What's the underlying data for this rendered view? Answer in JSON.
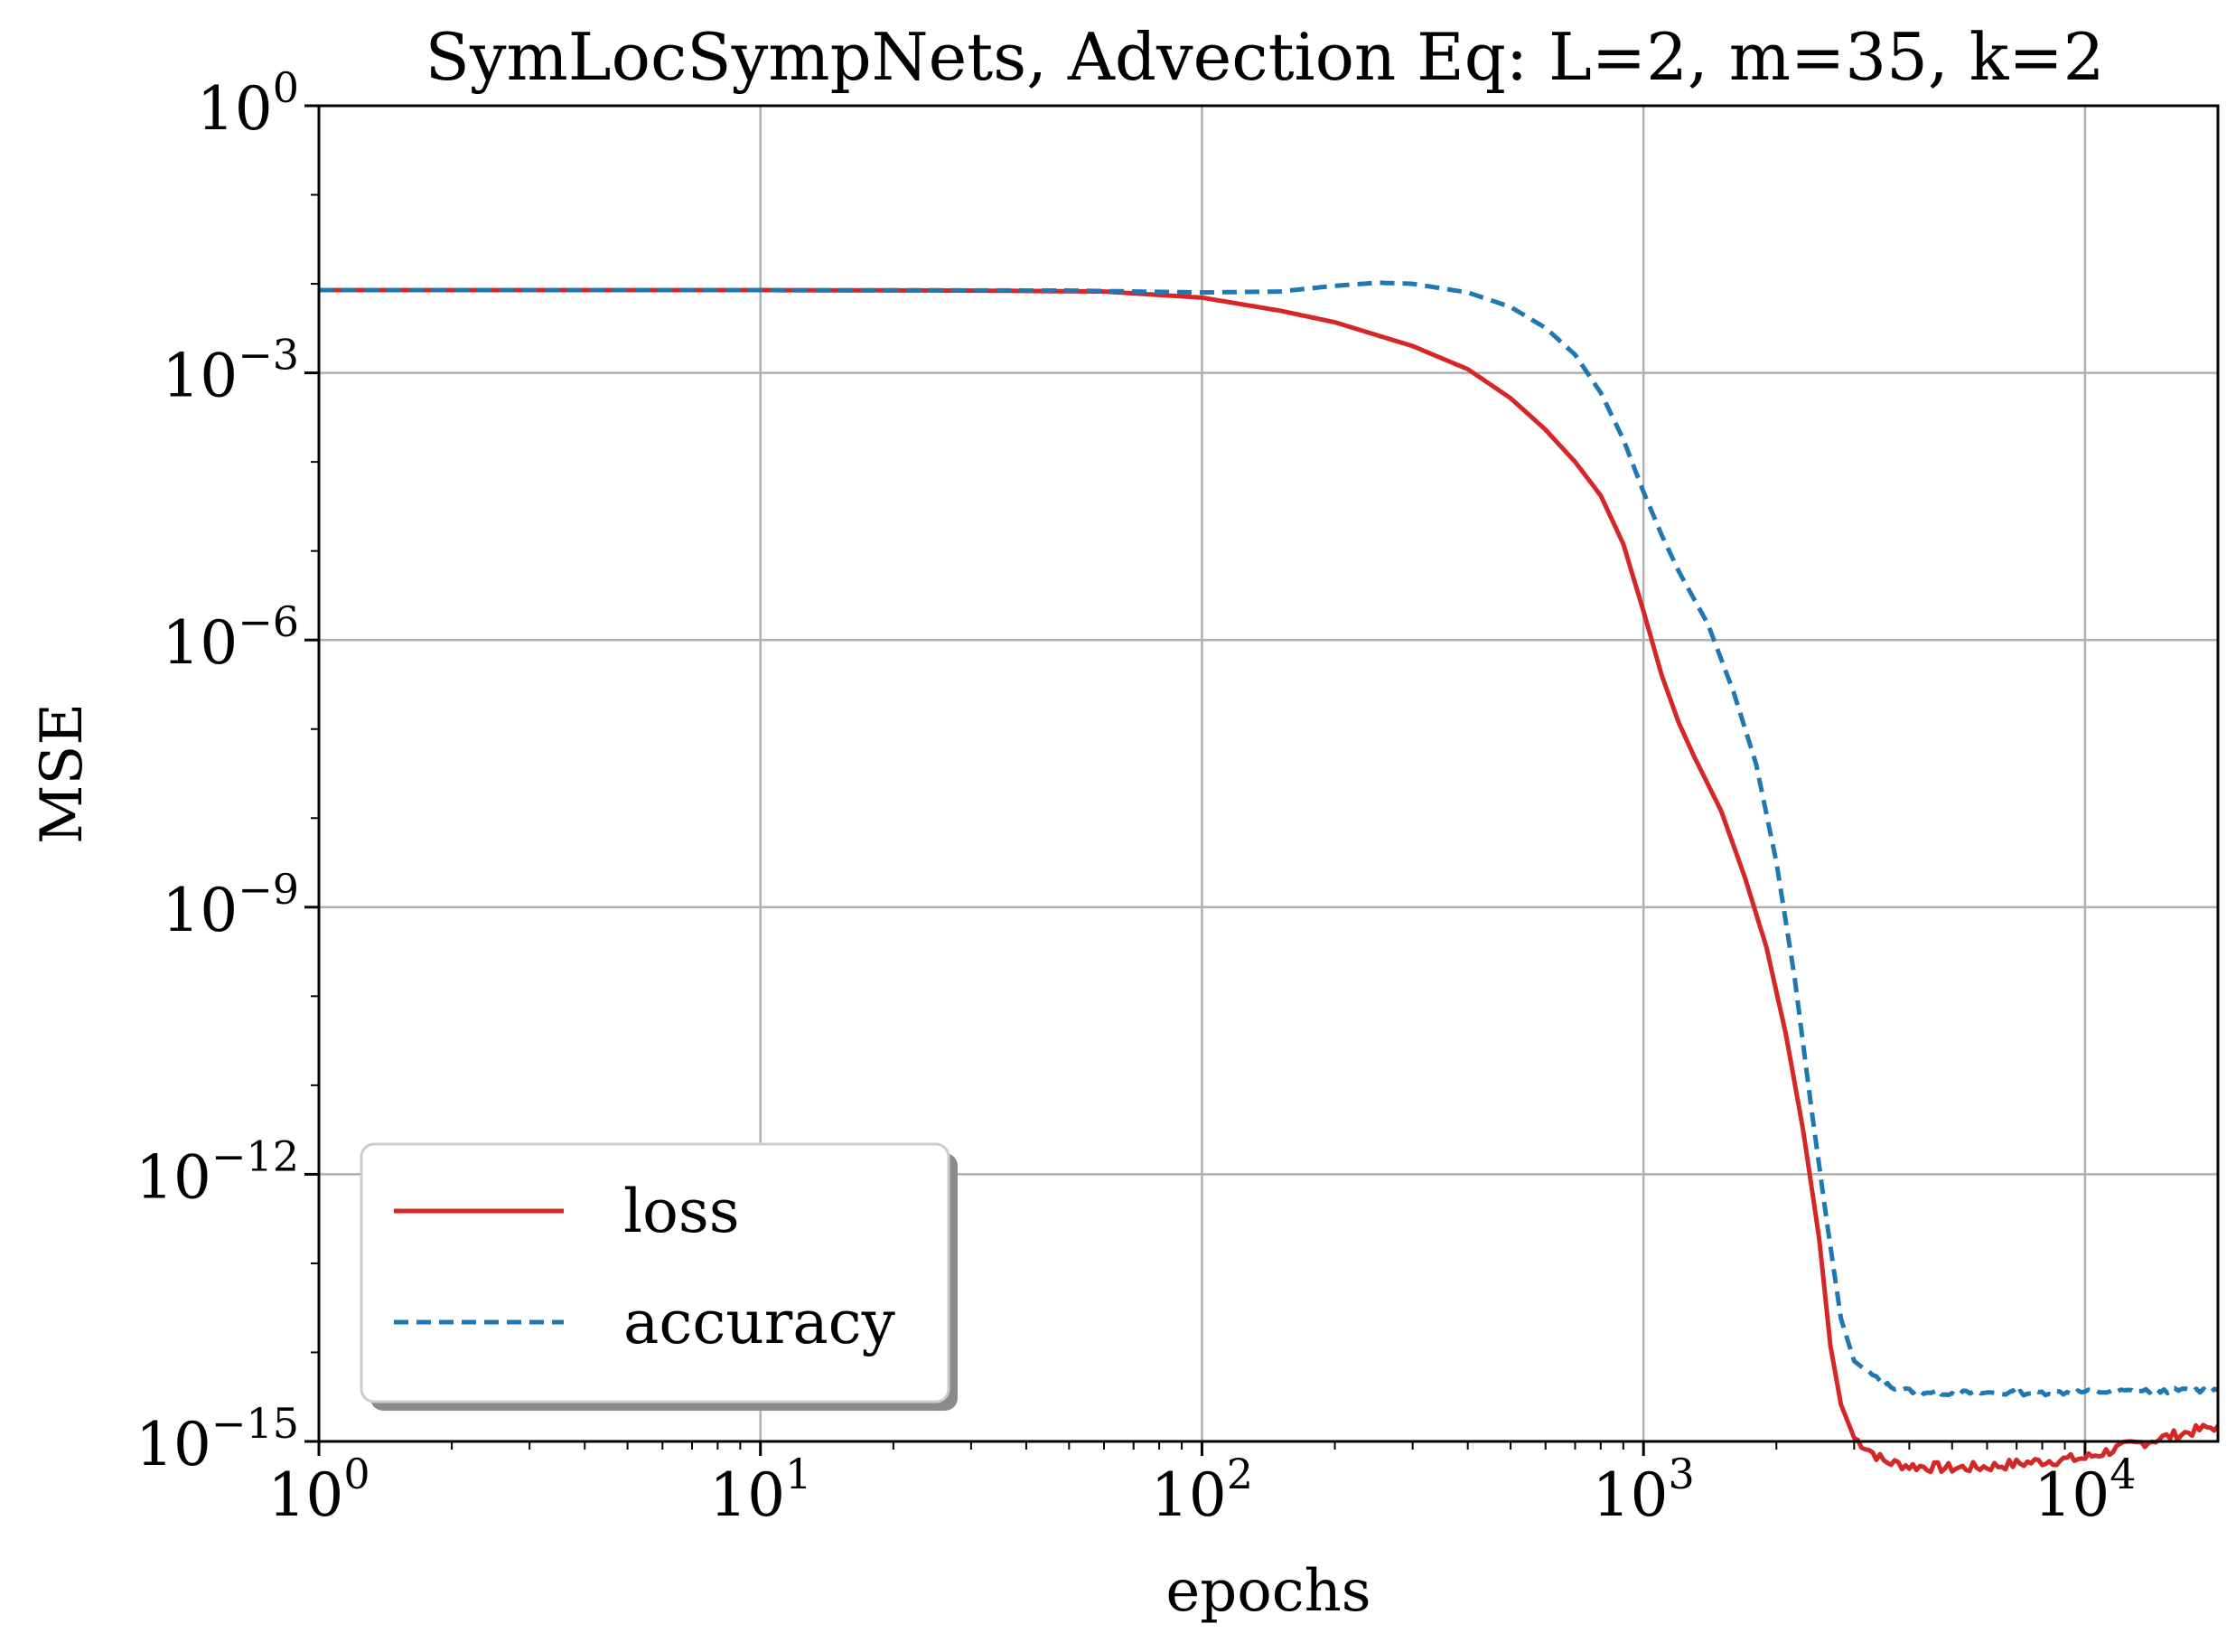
{
  "chart_data": {
    "type": "line",
    "title": "SymLocSympNets, Advection Eq: L=2, m=35, k=2",
    "xlabel": "epochs",
    "ylabel": "MSE",
    "xscale": "log",
    "yscale": "log",
    "xlim": [
      1,
      20000
    ],
    "ylim": [
      1e-15,
      1
    ],
    "grid": true,
    "legend_position": "lower-left",
    "x_ticks": [
      {
        "base": "10",
        "exp": "0",
        "value": 1
      },
      {
        "base": "10",
        "exp": "1",
        "value": 10
      },
      {
        "base": "10",
        "exp": "2",
        "value": 100
      },
      {
        "base": "10",
        "exp": "3",
        "value": 1000
      },
      {
        "base": "10",
        "exp": "4",
        "value": 10000
      }
    ],
    "y_ticks": [
      {
        "base": "10",
        "exp": "0",
        "value": 0
      },
      {
        "base": "10",
        "exp": "−3",
        "value": -3
      },
      {
        "base": "10",
        "exp": "−6",
        "value": -6
      },
      {
        "base": "10",
        "exp": "−9",
        "value": -9
      },
      {
        "base": "10",
        "exp": "−12",
        "value": -12
      },
      {
        "base": "10",
        "exp": "−15",
        "value": -15
      }
    ],
    "series": [
      {
        "name": "loss",
        "color": "#d62728",
        "style": "solid",
        "points": [
          [
            1,
            0.0085
          ],
          [
            10,
            0.0085
          ],
          [
            30,
            0.0084
          ],
          [
            60,
            0.0082
          ],
          [
            100,
            0.007
          ],
          [
            150,
            0.005
          ],
          [
            200,
            0.0037
          ],
          [
            300,
            0.002
          ],
          [
            400,
            0.0011
          ],
          [
            500,
            0.00052
          ],
          [
            600,
            0.00023
          ],
          [
            700,
            0.0001
          ],
          [
            800,
            4.2e-05
          ],
          [
            900,
            1.2e-05
          ],
          [
            1000,
            2.1e-06
          ],
          [
            1100,
            4e-07
          ],
          [
            1200,
            1.2e-07
          ],
          [
            1300,
            5e-08
          ],
          [
            1500,
            1.2e-08
          ],
          [
            1700,
            2.1e-09
          ],
          [
            1900,
            3.5e-10
          ],
          [
            2100,
            3.8e-11
          ],
          [
            2300,
            3.1e-12
          ],
          [
            2500,
            1.9e-13
          ],
          [
            2650,
            1.2e-14
          ],
          [
            2800,
            2.6e-15
          ],
          [
            3000,
            1.1e-15
          ],
          [
            3500,
            6e-16
          ],
          [
            4000,
            5.3e-16
          ],
          [
            5000,
            5e-16
          ],
          [
            6000,
            5.2e-16
          ],
          [
            8000,
            6e-16
          ],
          [
            10000,
            6.5e-16
          ],
          [
            12000,
            8.5e-16
          ],
          [
            15000,
            1.1e-15
          ],
          [
            20000,
            1.5e-15
          ]
        ]
      },
      {
        "name": "accuracy",
        "color": "#1f77b4",
        "style": "dashed",
        "points": [
          [
            1,
            0.0085
          ],
          [
            10,
            0.0085
          ],
          [
            50,
            0.0084
          ],
          [
            100,
            0.008
          ],
          [
            150,
            0.0082
          ],
          [
            200,
            0.0095
          ],
          [
            250,
            0.0103
          ],
          [
            300,
            0.01
          ],
          [
            400,
            0.008
          ],
          [
            500,
            0.0055
          ],
          [
            600,
            0.0032
          ],
          [
            700,
            0.0016
          ],
          [
            800,
            0.0006
          ],
          [
            900,
            0.00018
          ],
          [
            1000,
            4.6e-05
          ],
          [
            1100,
            1.5e-05
          ],
          [
            1200,
            6e-06
          ],
          [
            1400,
            1.5e-06
          ],
          [
            1600,
            2.6e-07
          ],
          [
            1800,
            4e-08
          ],
          [
            2000,
            3.2e-09
          ],
          [
            2200,
            1.6e-10
          ],
          [
            2400,
            5.5e-12
          ],
          [
            2600,
            3e-13
          ],
          [
            2800,
            2.4e-14
          ],
          [
            3000,
            8e-15
          ],
          [
            3500,
            4.4e-15
          ],
          [
            4000,
            3.7e-15
          ],
          [
            5000,
            3.5e-15
          ],
          [
            7000,
            3.5e-15
          ],
          [
            10000,
            3.6e-15
          ],
          [
            14000,
            3.7e-15
          ],
          [
            20000,
            3.8e-15
          ]
        ]
      }
    ]
  }
}
